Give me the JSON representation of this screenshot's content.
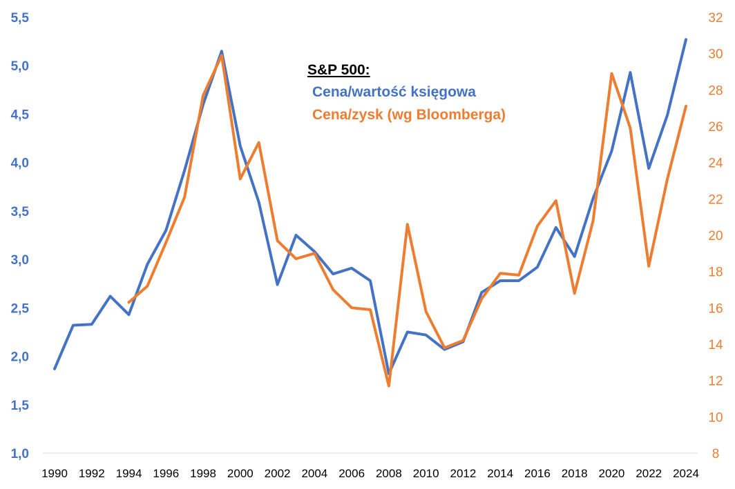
{
  "chart_data": {
    "type": "line",
    "title": "S&P 500:",
    "legend_position": "top-center",
    "x": [
      1990,
      1991,
      1992,
      1993,
      1994,
      1995,
      1996,
      1997,
      1998,
      1999,
      2000,
      2001,
      2002,
      2003,
      2004,
      2005,
      2006,
      2007,
      2008,
      2009,
      2010,
      2011,
      2012,
      2013,
      2014,
      2015,
      2016,
      2017,
      2018,
      2019,
      2020,
      2021,
      2022,
      2023,
      2024
    ],
    "x_tick_labels": [
      "1990",
      "1992",
      "1994",
      "1996",
      "1998",
      "2000",
      "2002",
      "2004",
      "2006",
      "2008",
      "2010",
      "2012",
      "2014",
      "2016",
      "2018",
      "2020",
      "2022",
      "2024"
    ],
    "x_tick_values": [
      1990,
      1992,
      1994,
      1996,
      1998,
      2000,
      2002,
      2004,
      2006,
      2008,
      2010,
      2012,
      2014,
      2016,
      2018,
      2020,
      2022,
      2024
    ],
    "y_left": {
      "ylim": [
        1.0,
        5.5
      ],
      "tick_values": [
        1.0,
        1.5,
        2.0,
        2.5,
        3.0,
        3.5,
        4.0,
        4.5,
        5.0,
        5.5
      ],
      "tick_labels": [
        "1,0",
        "1,5",
        "2,0",
        "2,5",
        "3,0",
        "3,5",
        "4,0",
        "4,5",
        "5,0",
        "5,5"
      ]
    },
    "y_right": {
      "ylim": [
        8,
        32
      ],
      "tick_values": [
        8,
        10,
        12,
        14,
        16,
        18,
        20,
        22,
        24,
        26,
        28,
        30,
        32
      ],
      "tick_labels": [
        "8",
        "10",
        "12",
        "14",
        "16",
        "18",
        "20",
        "22",
        "24",
        "26",
        "28",
        "30",
        "32"
      ]
    },
    "series": [
      {
        "name": "Cena/wartość księgowa",
        "axis": "left",
        "color": "#4472C4",
        "x": [
          1990,
          1991,
          1992,
          1993,
          1994,
          1995,
          1996,
          1997,
          1998,
          1999,
          2000,
          2001,
          2002,
          2003,
          2004,
          2005,
          2006,
          2007,
          2008,
          2009,
          2010,
          2011,
          2012,
          2013,
          2014,
          2015,
          2016,
          2017,
          2018,
          2019,
          2020,
          2021,
          2022,
          2023,
          2024
        ],
        "values": [
          1.87,
          2.32,
          2.33,
          2.62,
          2.43,
          2.95,
          3.3,
          3.92,
          4.6,
          5.15,
          4.17,
          3.59,
          2.74,
          3.25,
          3.08,
          2.85,
          2.91,
          2.78,
          1.82,
          2.25,
          2.22,
          2.07,
          2.15,
          2.66,
          2.78,
          2.78,
          2.92,
          3.33,
          3.03,
          3.63,
          4.12,
          4.93,
          3.94,
          4.49,
          5.27
        ]
      },
      {
        "name": "Cena/zysk (wg Bloomberga)",
        "axis": "right",
        "color": "#ED7D31",
        "x": [
          1994,
          1995,
          1996,
          1997,
          1998,
          1999,
          2000,
          2001,
          2002,
          2003,
          2004,
          2005,
          2006,
          2007,
          2008,
          2009,
          2010,
          2011,
          2012,
          2013,
          2014,
          2015,
          2016,
          2017,
          2018,
          2019,
          2020,
          2021,
          2022,
          2023,
          2024
        ],
        "values": [
          16.3,
          17.2,
          19.6,
          22.1,
          27.7,
          29.9,
          23.1,
          25.1,
          19.7,
          18.7,
          19.0,
          17.0,
          16.0,
          15.9,
          11.7,
          20.6,
          15.8,
          13.8,
          14.2,
          16.5,
          17.9,
          17.8,
          20.5,
          21.9,
          16.8,
          20.8,
          28.9,
          25.9,
          18.3,
          23.1,
          27.1
        ]
      }
    ]
  }
}
